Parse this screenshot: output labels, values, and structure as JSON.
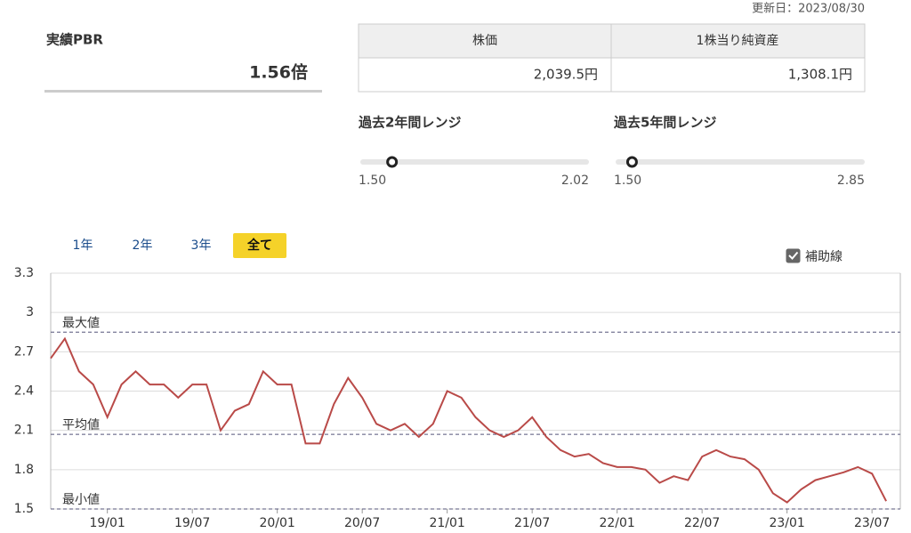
{
  "updated": "更新日：2023/08/30",
  "pbr": {
    "label": "実績PBR",
    "value": 1.56,
    "value_label": "1.56倍"
  },
  "table": {
    "headers": [
      "株価",
      "1株当り純資産"
    ],
    "values": [
      "2,039.5円",
      "1,308.1円"
    ]
  },
  "ranges": [
    {
      "title": "過去2年間レンジ",
      "min": {
        "value": 1.5,
        "label": "1.50"
      },
      "max": {
        "value": 2.02,
        "label": "2.02"
      }
    },
    {
      "title": "過去5年間レンジ",
      "min": {
        "value": 1.5,
        "label": "1.50"
      },
      "max": {
        "value": 2.85,
        "label": "2.85"
      }
    }
  ],
  "tabs": {
    "items": [
      "1年",
      "2年",
      "3年",
      "全て"
    ],
    "active": 3
  },
  "guide": {
    "label": "補助線",
    "checked": true
  },
  "chart_data": {
    "type": "line",
    "x": [
      "18/09",
      "18/10",
      "18/11",
      "18/12",
      "19/01",
      "19/02",
      "19/03",
      "19/04",
      "19/05",
      "19/06",
      "19/07",
      "19/08",
      "19/09",
      "19/10",
      "19/11",
      "19/12",
      "20/01",
      "20/02",
      "20/03",
      "20/04",
      "20/05",
      "20/06",
      "20/07",
      "20/08",
      "20/09",
      "20/10",
      "20/11",
      "20/12",
      "21/01",
      "21/02",
      "21/03",
      "21/04",
      "21/05",
      "21/06",
      "21/07",
      "21/08",
      "21/09",
      "21/10",
      "21/11",
      "21/12",
      "22/01",
      "22/02",
      "22/03",
      "22/04",
      "22/05",
      "22/06",
      "22/07",
      "22/08",
      "22/09",
      "22/10",
      "22/11",
      "22/12",
      "23/01",
      "23/02",
      "23/03",
      "23/04",
      "23/05",
      "23/06",
      "23/07",
      "23/08"
    ],
    "series": [
      {
        "color": "#b94a48",
        "values": [
          2.65,
          2.8,
          2.55,
          2.45,
          2.2,
          2.45,
          2.55,
          2.45,
          2.45,
          2.35,
          2.45,
          2.45,
          2.1,
          2.25,
          2.3,
          2.55,
          2.45,
          2.45,
          2.0,
          2.0,
          2.3,
          2.5,
          2.35,
          2.15,
          2.1,
          2.15,
          2.05,
          2.15,
          2.4,
          2.35,
          2.2,
          2.1,
          2.05,
          2.1,
          2.2,
          2.05,
          1.95,
          1.9,
          1.92,
          1.85,
          1.82,
          1.82,
          1.8,
          1.7,
          1.75,
          1.72,
          1.9,
          1.95,
          1.9,
          1.88,
          1.8,
          1.62,
          1.55,
          1.65,
          1.72,
          1.75,
          1.78,
          1.82,
          1.77,
          1.56
        ]
      }
    ],
    "xlim": [
      "18/09",
      "23/09"
    ],
    "xticks": [
      "19/01",
      "19/07",
      "20/01",
      "20/07",
      "21/01",
      "21/07",
      "22/01",
      "22/07",
      "23/01",
      "23/07"
    ],
    "ylim": [
      1.5,
      3.3
    ],
    "yticks": [
      1.5,
      1.8,
      2.1,
      2.4,
      2.7,
      3,
      3.3
    ],
    "grid": true,
    "reference_lines": [
      {
        "label": "最大値",
        "value": 2.85
      },
      {
        "label": "平均値",
        "value": 2.07
      },
      {
        "label": "最小値",
        "value": 1.5
      }
    ]
  }
}
